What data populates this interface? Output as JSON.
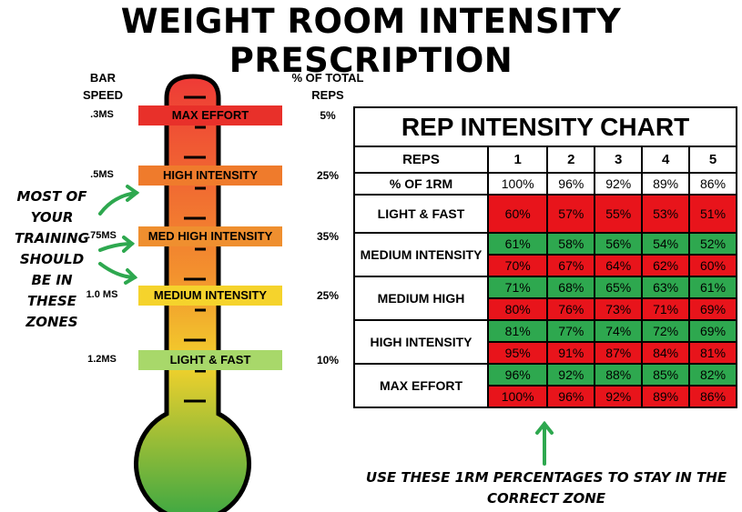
{
  "title": "WEIGHT ROOM INTENSITY PRESCRIPTION",
  "thermometer": {
    "left_header": "BAR SPEED",
    "right_header": "% OF TOTAL REPS",
    "zones": [
      {
        "speed": ".3MS",
        "label": "MAX EFFORT",
        "share": "5%"
      },
      {
        "speed": ".5MS",
        "label": "HIGH INTENSITY",
        "share": "25%"
      },
      {
        "speed": ".75MS",
        "label": "MED HIGH INTENSITY",
        "share": "35%"
      },
      {
        "speed": "1.0 MS",
        "label": "MEDIUM INTENSITY",
        "share": "25%"
      },
      {
        "speed": "1.2MS",
        "label": "LIGHT & FAST",
        "share": "10%"
      }
    ]
  },
  "note": "MOST OF YOUR TRAINING SHOULD BE IN THESE ZONES",
  "table": {
    "title": "REP INTENSITY CHART",
    "header": [
      "REPS",
      "1",
      "2",
      "3",
      "4",
      "5"
    ],
    "pct_row": [
      "% OF 1RM",
      "100%",
      "96%",
      "92%",
      "89%",
      "86%"
    ],
    "groups": [
      {
        "label": "LIGHT & FAST",
        "rows": [
          [
            "60%",
            "57%",
            "55%",
            "53%",
            "51%"
          ]
        ]
      },
      {
        "label": "MEDIUM INTENSITY",
        "rows": [
          [
            "61%",
            "58%",
            "56%",
            "54%",
            "52%"
          ],
          [
            "70%",
            "67%",
            "64%",
            "62%",
            "60%"
          ]
        ]
      },
      {
        "label": "MEDIUM HIGH",
        "rows": [
          [
            "71%",
            "68%",
            "65%",
            "63%",
            "61%"
          ],
          [
            "80%",
            "76%",
            "73%",
            "71%",
            "69%"
          ]
        ]
      },
      {
        "label": "HIGH INTENSITY",
        "rows": [
          [
            "81%",
            "77%",
            "74%",
            "72%",
            "69%"
          ],
          [
            "95%",
            "91%",
            "87%",
            "84%",
            "81%"
          ]
        ]
      },
      {
        "label": "MAX EFFORT",
        "rows": [
          [
            "96%",
            "92%",
            "88%",
            "85%",
            "82%"
          ],
          [
            "100%",
            "96%",
            "92%",
            "89%",
            "86%"
          ]
        ]
      }
    ]
  },
  "caption": "USE THESE 1RM PERCENTAGES TO STAY IN THE CORRECT ZONE"
}
